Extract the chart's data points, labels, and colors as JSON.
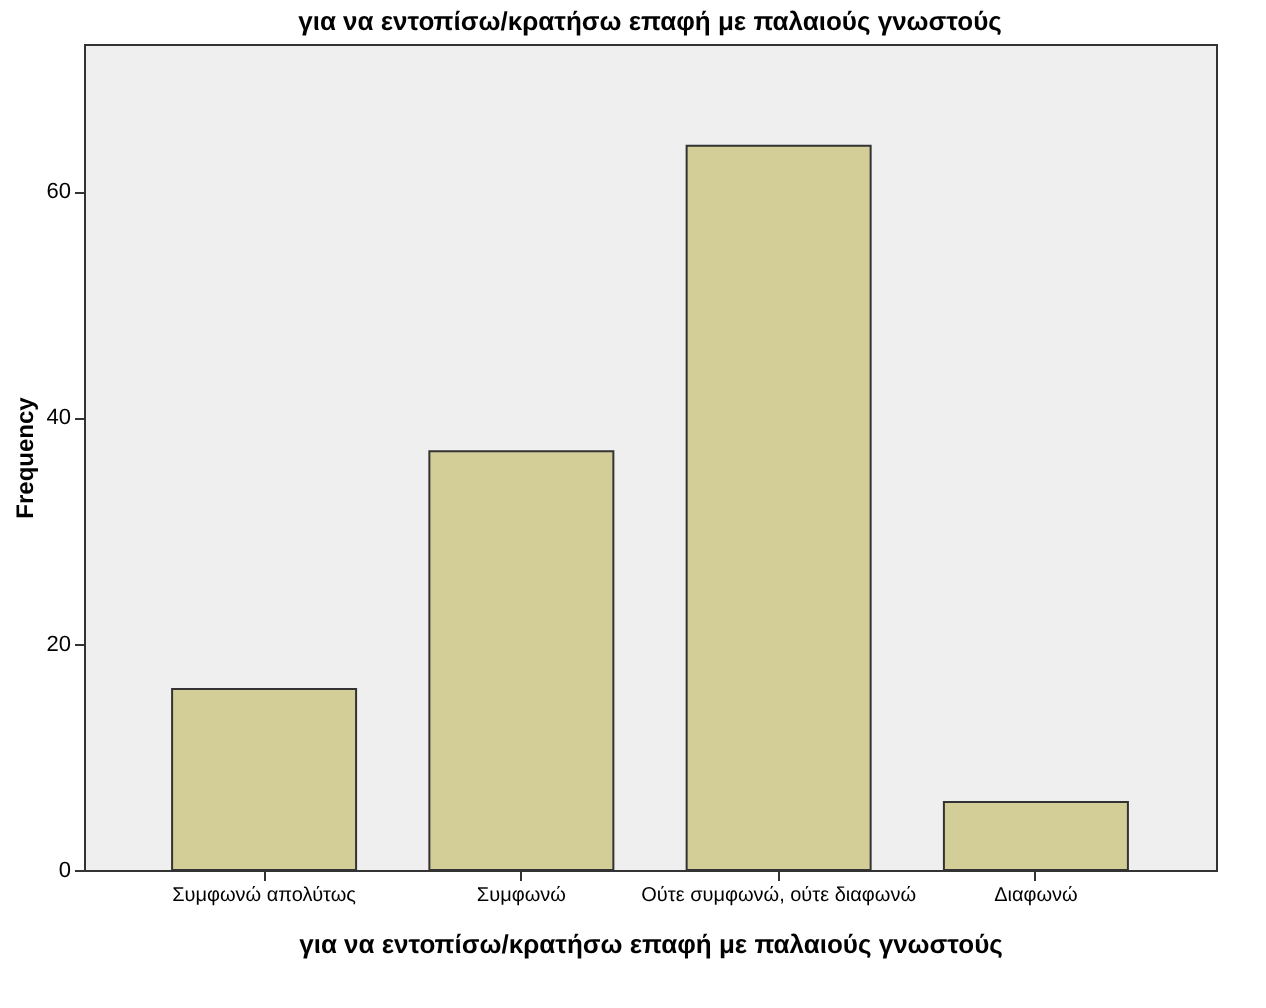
{
  "chart_data": {
    "type": "bar",
    "title": "για να εντοπίσω/κρατήσω επαφή με παλαιούς γνωστούς",
    "xlabel": "για να εντοπίσω/κρατήσω επαφή με παλαιούς γνωστούς",
    "ylabel": "Frequency",
    "categories": [
      "Συμφωνώ απολύτως",
      "Συμφωνώ",
      "Ούτε συμφωνώ, ούτε διαφωνώ",
      "Διαφωνώ"
    ],
    "values": [
      16,
      37,
      64,
      6
    ],
    "color": "#d3ce97",
    "ylim": [
      0,
      73
    ],
    "yticks": [
      0,
      20,
      40,
      60
    ],
    "grid": false
  }
}
